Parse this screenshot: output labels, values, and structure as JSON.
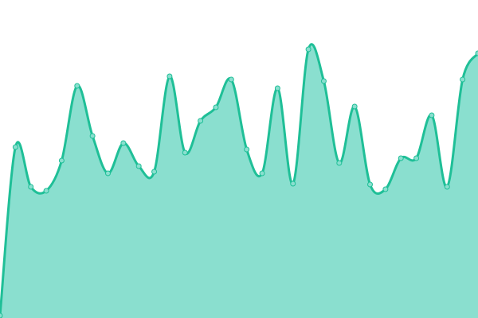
{
  "chart_data": {
    "type": "area",
    "title": "",
    "xlabel": "",
    "ylabel": "",
    "x": [
      0,
      1,
      2,
      3,
      4,
      5,
      6,
      7,
      8,
      9,
      10,
      11,
      12,
      13,
      14,
      15,
      16,
      17,
      18,
      19,
      20,
      21,
      22,
      23,
      24,
      25,
      26,
      27,
      28,
      29,
      30,
      31
    ],
    "values": [
      3,
      215,
      165,
      160,
      198,
      292,
      229,
      182,
      220,
      191,
      184,
      304,
      208,
      248,
      265,
      300,
      212,
      182,
      289,
      169,
      338,
      298,
      195,
      266,
      168,
      162,
      201,
      201,
      255,
      165,
      300,
      333
    ],
    "ylim": [
      0,
      400
    ],
    "grid": false,
    "axes_visible": false,
    "smooth": true,
    "markers": true,
    "colors": {
      "line": "#1fbf97",
      "fill": "#8adfcf",
      "marker_fill": "#8adfcf",
      "marker_stroke": "#1fbf97"
    }
  }
}
